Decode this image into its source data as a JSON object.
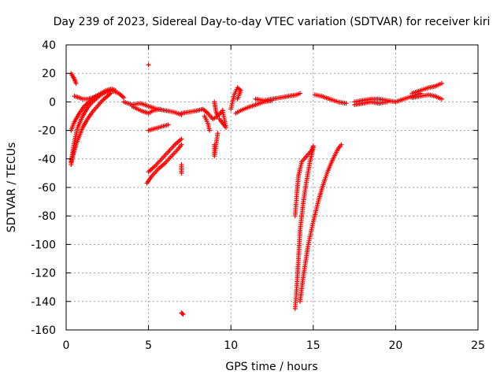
{
  "chart_data": {
    "type": "scatter",
    "title": "Day 239 of 2023, Sidereal Day-to-day VTEC variation (SDTVAR) for receiver kiri",
    "xlabel": "GPS time / hours",
    "ylabel": "SDTVAR / TECUs",
    "xlim": [
      0,
      25
    ],
    "ylim": [
      -160,
      40
    ],
    "x_ticks": [
      "0",
      "5",
      "10",
      "15",
      "20",
      "25"
    ],
    "y_ticks": [
      "40",
      "20",
      "0",
      "-20",
      "-40",
      "-60",
      "-80",
      "-100",
      "-120",
      "-140",
      "-160"
    ],
    "grid": true,
    "marker": "+",
    "color": "#ff0000",
    "series": [
      {
        "points": [
          [
            0.3,
            20
          ],
          [
            0.4,
            18
          ],
          [
            0.5,
            16
          ],
          [
            0.6,
            13
          ]
        ]
      },
      {
        "points": [
          [
            0.3,
            -44
          ],
          [
            0.4,
            -38
          ],
          [
            0.5,
            -34
          ],
          [
            0.6,
            -30
          ],
          [
            0.8,
            -24
          ],
          [
            1.0,
            -18
          ],
          [
            1.3,
            -12
          ],
          [
            1.6,
            -7
          ],
          [
            1.9,
            -3
          ],
          [
            2.2,
            1
          ],
          [
            2.5,
            4
          ],
          [
            2.7,
            6
          ]
        ]
      },
      {
        "points": [
          [
            0.3,
            -42
          ],
          [
            0.5,
            -28
          ],
          [
            0.7,
            -18
          ],
          [
            1.0,
            -10
          ],
          [
            1.3,
            -4
          ],
          [
            1.6,
            0
          ],
          [
            2.0,
            4
          ],
          [
            2.4,
            7
          ],
          [
            2.8,
            9
          ],
          [
            3.0,
            8
          ]
        ]
      },
      {
        "points": [
          [
            0.3,
            -20
          ],
          [
            0.5,
            -14
          ],
          [
            0.8,
            -8
          ],
          [
            1.1,
            -3
          ],
          [
            1.5,
            1
          ],
          [
            1.8,
            4
          ],
          [
            2.1,
            6
          ],
          [
            2.4,
            8
          ],
          [
            2.7,
            9
          ]
        ]
      },
      {
        "points": [
          [
            0.5,
            4
          ],
          [
            0.8,
            3
          ],
          [
            1.0,
            2
          ],
          [
            1.3,
            2
          ],
          [
            1.6,
            3
          ],
          [
            2.0,
            5
          ],
          [
            2.4,
            7
          ],
          [
            2.8,
            8
          ],
          [
            3.2,
            6
          ],
          [
            3.5,
            3
          ]
        ]
      },
      {
        "points": [
          [
            3.5,
            0
          ],
          [
            4.0,
            -2
          ],
          [
            4.5,
            -1
          ],
          [
            5.0,
            -3
          ],
          [
            5.5,
            -5
          ],
          [
            6.0,
            -6
          ],
          [
            6.5,
            -7
          ],
          [
            7.0,
            -9
          ]
        ]
      },
      {
        "points": [
          [
            4.0,
            -3
          ],
          [
            4.5,
            -6
          ],
          [
            5.0,
            -8
          ],
          [
            5.3,
            -6
          ],
          [
            5.7,
            -5
          ]
        ]
      },
      {
        "points": [
          [
            5.0,
            -20
          ],
          [
            5.3,
            -19
          ],
          [
            5.6,
            -18
          ],
          [
            5.9,
            -17
          ],
          [
            6.2,
            -16
          ]
        ]
      },
      {
        "points": [
          [
            4.9,
            -57
          ],
          [
            5.2,
            -52
          ],
          [
            5.6,
            -47
          ],
          [
            6.0,
            -43
          ],
          [
            6.4,
            -38
          ],
          [
            6.8,
            -33
          ],
          [
            7.0,
            -30
          ]
        ]
      },
      {
        "points": [
          [
            5.0,
            -49
          ],
          [
            5.4,
            -45
          ],
          [
            5.8,
            -40
          ],
          [
            6.2,
            -35
          ],
          [
            6.6,
            -30
          ],
          [
            7.0,
            -26
          ]
        ]
      },
      {
        "points": [
          [
            5.0,
            26
          ]
        ]
      },
      {
        "points": [
          [
            7.0,
            -44
          ],
          [
            7.0,
            -50
          ]
        ]
      },
      {
        "points": [
          [
            7.0,
            -148
          ],
          [
            7.1,
            -149
          ]
        ]
      },
      {
        "points": [
          [
            7.0,
            -8
          ],
          [
            7.5,
            -7
          ],
          [
            8.0,
            -6
          ],
          [
            8.3,
            -5
          ],
          [
            8.6,
            -8
          ],
          [
            8.9,
            -12
          ],
          [
            9.2,
            -10
          ],
          [
            9.5,
            -6
          ]
        ]
      },
      {
        "points": [
          [
            8.4,
            -10
          ],
          [
            8.6,
            -15
          ],
          [
            8.7,
            -20
          ]
        ]
      },
      {
        "points": [
          [
            9.0,
            0
          ],
          [
            9.1,
            -7
          ],
          [
            9.2,
            -10
          ]
        ]
      },
      {
        "points": [
          [
            9.0,
            -30
          ],
          [
            9.0,
            -38
          ],
          [
            9.2,
            -22
          ]
        ]
      },
      {
        "points": [
          [
            9.3,
            -12
          ],
          [
            9.5,
            -15
          ],
          [
            9.7,
            -18
          ],
          [
            9.5,
            -6
          ]
        ]
      },
      {
        "points": [
          [
            10.0,
            -5
          ],
          [
            10.2,
            5
          ],
          [
            10.4,
            10
          ],
          [
            10.6,
            8
          ],
          [
            10.4,
            2
          ]
        ]
      },
      {
        "points": [
          [
            10.3,
            -8
          ],
          [
            10.6,
            -6
          ],
          [
            11.0,
            -4
          ],
          [
            11.5,
            -2
          ],
          [
            12.0,
            0
          ],
          [
            12.5,
            1
          ]
        ]
      },
      {
        "points": [
          [
            11.5,
            2
          ],
          [
            12.0,
            1
          ],
          [
            12.5,
            2
          ],
          [
            13.0,
            3
          ],
          [
            13.5,
            4
          ],
          [
            14.0,
            5
          ],
          [
            14.2,
            6
          ]
        ]
      },
      {
        "points": [
          [
            13.9,
            -145
          ],
          [
            14.0,
            -130
          ],
          [
            14.1,
            -110
          ],
          [
            14.2,
            -90
          ],
          [
            14.4,
            -70
          ],
          [
            14.6,
            -55
          ],
          [
            14.8,
            -42
          ],
          [
            15.0,
            -32
          ]
        ]
      },
      {
        "points": [
          [
            13.9,
            -80
          ],
          [
            14.0,
            -65
          ],
          [
            14.1,
            -52
          ],
          [
            14.3,
            -42
          ],
          [
            14.6,
            -38
          ],
          [
            14.9,
            -34
          ],
          [
            15.0,
            -31
          ]
        ]
      },
      {
        "points": [
          [
            14.2,
            -140
          ],
          [
            14.4,
            -122
          ],
          [
            14.7,
            -100
          ],
          [
            15.0,
            -84
          ],
          [
            15.3,
            -70
          ],
          [
            15.6,
            -58
          ],
          [
            15.9,
            -48
          ],
          [
            16.2,
            -40
          ],
          [
            16.5,
            -33
          ],
          [
            16.7,
            -30
          ]
        ]
      },
      {
        "points": [
          [
            15.1,
            5
          ],
          [
            15.5,
            4
          ],
          [
            16.0,
            2
          ],
          [
            16.5,
            0
          ],
          [
            17.0,
            -1
          ]
        ]
      },
      {
        "points": [
          [
            17.5,
            0
          ],
          [
            18.0,
            1
          ],
          [
            18.5,
            2
          ],
          [
            19.0,
            2
          ],
          [
            19.5,
            1
          ],
          [
            20.0,
            0
          ],
          [
            20.5,
            2
          ],
          [
            21.0,
            4
          ],
          [
            21.5,
            6
          ]
        ]
      },
      {
        "points": [
          [
            17.5,
            -2
          ],
          [
            18.0,
            -1
          ],
          [
            18.5,
            0
          ],
          [
            19.0,
            -1
          ],
          [
            19.5,
            0
          ]
        ]
      },
      {
        "points": [
          [
            21.0,
            6
          ],
          [
            21.5,
            8
          ],
          [
            22.0,
            10
          ],
          [
            22.4,
            11
          ],
          [
            22.8,
            13
          ]
        ]
      },
      {
        "points": [
          [
            21.0,
            3
          ],
          [
            21.5,
            4
          ],
          [
            22.0,
            5
          ],
          [
            22.4,
            4
          ],
          [
            22.8,
            2
          ]
        ]
      }
    ]
  }
}
